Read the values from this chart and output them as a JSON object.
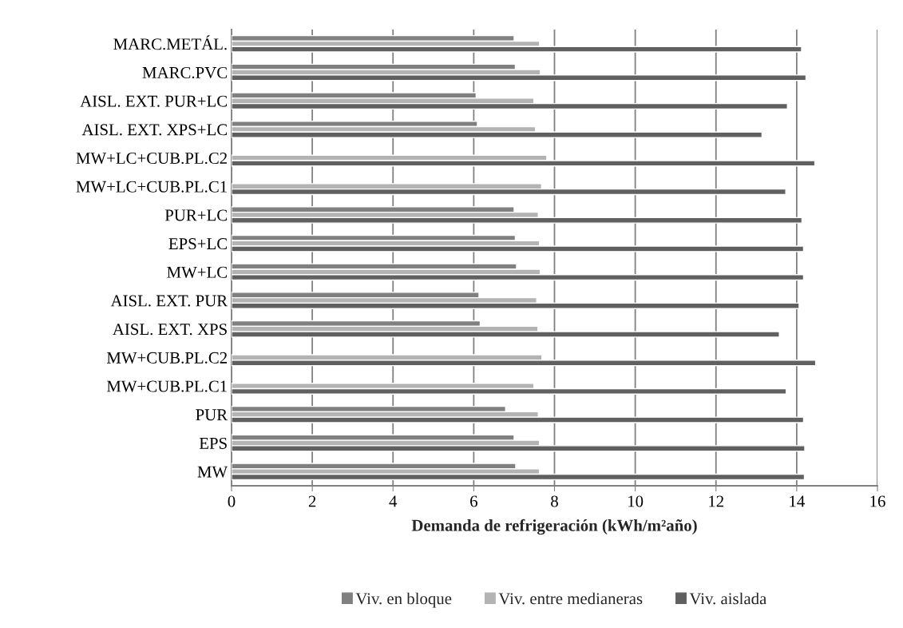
{
  "chart_data": {
    "type": "bar",
    "orientation": "horizontal",
    "categories": [
      "MARC.METÁL.",
      "MARC.PVC",
      "AISL. EXT. PUR+LC",
      "AISL. EXT. XPS+LC",
      "MW+LC+CUB.PL.C2",
      "MW+LC+CUB.PL.C1",
      "PUR+LC",
      "EPS+LC",
      "MW+LC",
      "AISL. EXT. PUR",
      "AISL. EXT. XPS",
      "MW+CUB.PL.C2",
      "MW+CUB.PL.C1",
      "PUR",
      "EPS",
      "MW"
    ],
    "series": [
      {
        "name": "Viv. en bloque",
        "color": "#808080",
        "values": [
          7.0,
          7.03,
          6.06,
          6.09,
          null,
          null,
          7.0,
          7.03,
          7.06,
          6.13,
          6.16,
          null,
          null,
          6.79,
          7.0,
          7.04
        ]
      },
      {
        "name": "Viv. entre medianeras",
        "color": "#b3b3b3",
        "values": [
          7.63,
          7.65,
          7.49,
          7.53,
          7.81,
          7.68,
          7.6,
          7.63,
          7.65,
          7.56,
          7.59,
          7.69,
          7.49,
          7.6,
          7.63,
          7.63
        ]
      },
      {
        "name": "Viv. aislada",
        "color": "#606060",
        "values": [
          14.12,
          14.23,
          13.77,
          13.14,
          14.45,
          13.73,
          14.13,
          14.17,
          14.17,
          14.06,
          13.57,
          14.47,
          13.74,
          14.17,
          14.2,
          14.19
        ]
      }
    ],
    "xlabel": "Demanda de refrigeración (kWh/m²año)",
    "xlim": [
      0,
      16
    ],
    "xticks": [
      0,
      2,
      4,
      6,
      8,
      10,
      12,
      14,
      16
    ],
    "grid": "x",
    "legend": "bottom"
  }
}
